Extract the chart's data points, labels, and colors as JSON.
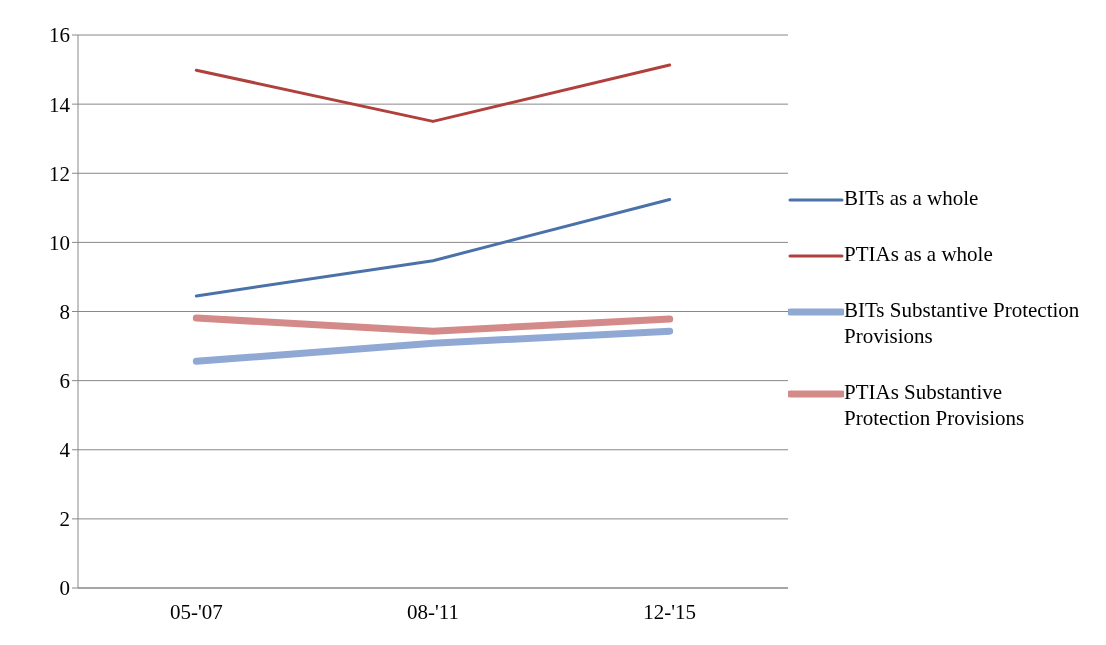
{
  "chart_data": {
    "type": "line",
    "categories": [
      "05-'07",
      "08-'11",
      "12-'15"
    ],
    "series": [
      {
        "name": "BITs as a whole",
        "color": "#4a72a8",
        "values": [
          8.45,
          9.47,
          11.24
        ]
      },
      {
        "name": "PTIAs as a whole",
        "color": "#b0403c",
        "values": [
          14.98,
          13.5,
          15.13
        ]
      },
      {
        "name": "BITs Substantive Protection Provisions",
        "color": "#8fa8d4",
        "values": [
          6.56,
          7.08,
          7.43
        ]
      },
      {
        "name": "PTIAs Substantive Protection Provisions",
        "color": "#d48a88",
        "values": [
          7.81,
          7.43,
          7.78
        ]
      }
    ],
    "ylim": [
      0,
      16
    ],
    "yticks": [
      0,
      2,
      4,
      6,
      8,
      10,
      12,
      14,
      16
    ],
    "grid": "y",
    "legend": "right",
    "marker": "none",
    "line_style": "solid"
  }
}
